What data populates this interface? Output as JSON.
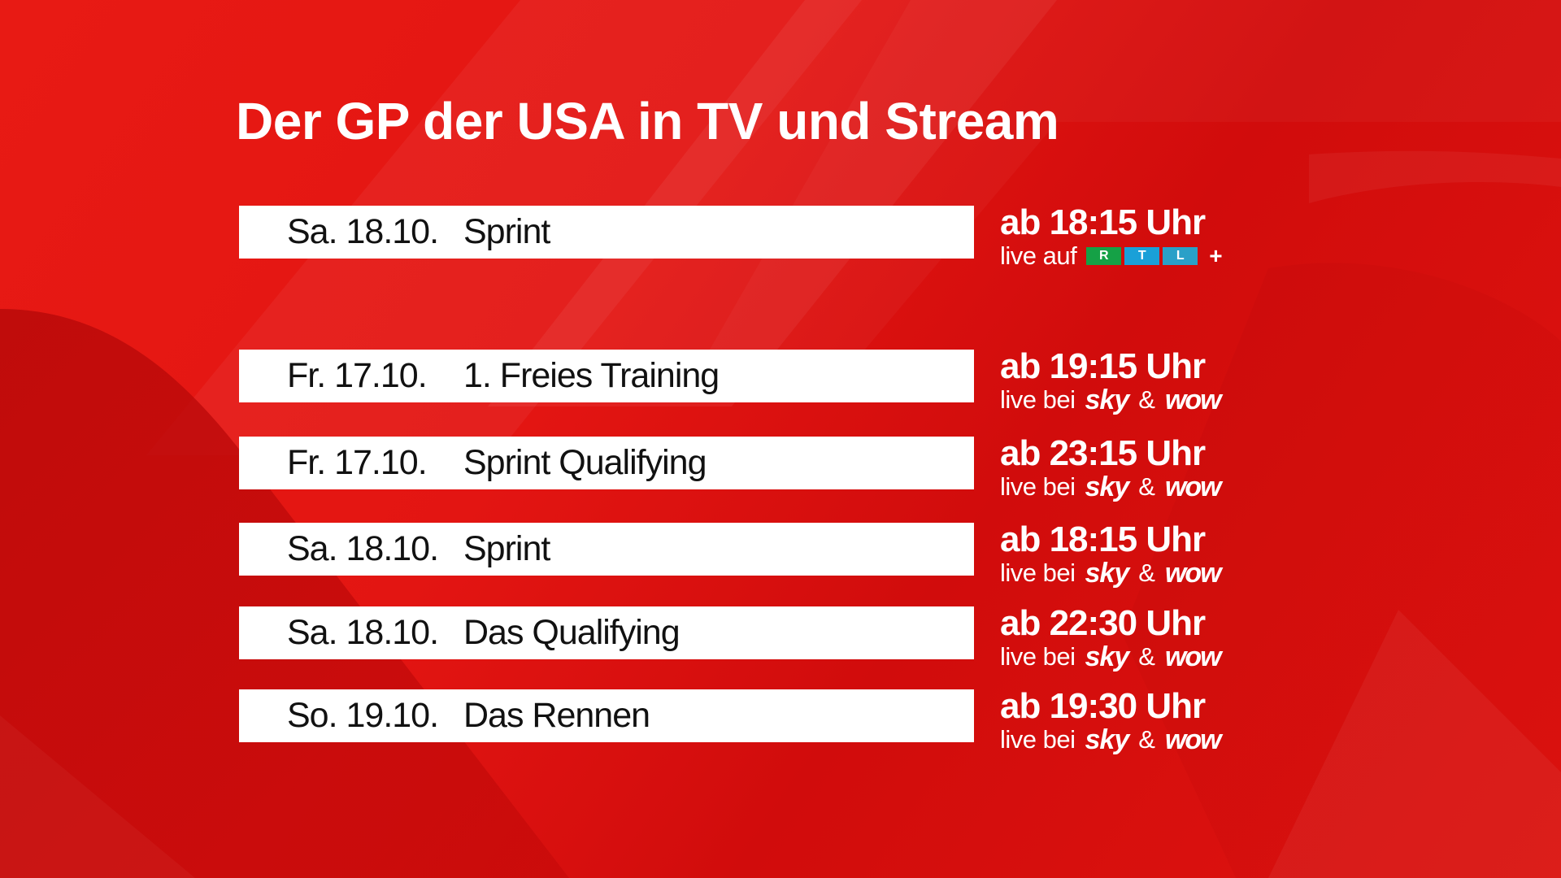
{
  "title": "Der GP der USA in TV und Stream",
  "colors": {
    "background": "#e31512",
    "row_background": "#ffffff",
    "row_text": "#111111",
    "info_text": "#ffffff",
    "rtl_r": "#15a146",
    "rtl_t": "#1aa0d8",
    "rtl_l": "#2aa0c8"
  },
  "featured": {
    "date": "Sa. 18.10.",
    "event": "Sprint",
    "time": "ab 18:15 Uhr",
    "prefix": "live auf",
    "logo": {
      "letters": [
        "R",
        "T",
        "L"
      ],
      "plus": "+"
    }
  },
  "schedule": [
    {
      "date": "Fr. 17.10.",
      "event": "1. Freies Training",
      "time": "ab 19:15 Uhr",
      "prefix": "live bei",
      "brand1": "sky",
      "amp": "&",
      "brand2": "wow"
    },
    {
      "date": "Fr. 17.10.",
      "event": "Sprint Qualifying",
      "time": "ab 23:15 Uhr",
      "prefix": "live bei",
      "brand1": "sky",
      "amp": "&",
      "brand2": "wow"
    },
    {
      "date": "Sa. 18.10.",
      "event": "Sprint",
      "time": "ab 18:15 Uhr",
      "prefix": "live bei",
      "brand1": "sky",
      "amp": "&",
      "brand2": "wow"
    },
    {
      "date": "Sa. 18.10.",
      "event": "Das Qualifying",
      "time": "ab 22:30 Uhr",
      "prefix": "live bei",
      "brand1": "sky",
      "amp": "&",
      "brand2": "wow"
    },
    {
      "date": "So. 19.10.",
      "event": "Das Rennen",
      "time": "ab 19:30 Uhr",
      "prefix": "live bei",
      "brand1": "sky",
      "amp": "&",
      "brand2": "wow"
    }
  ]
}
